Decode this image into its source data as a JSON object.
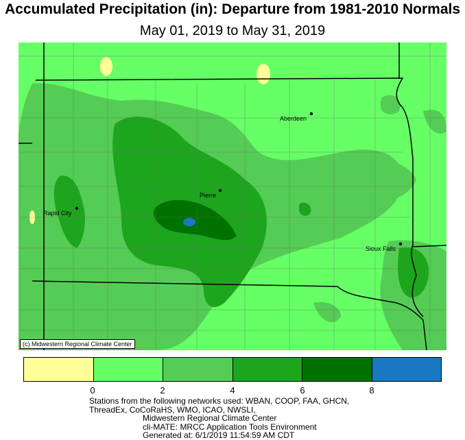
{
  "title": "Accumulated Precipitation (in): Departure from 1981-2010 Normals",
  "subtitle": "May 01, 2019 to May 31, 2019",
  "map": {
    "copyright": "(c) Midwestern Regional Climate Center",
    "cities": [
      {
        "name": "Aberdeen"
      },
      {
        "name": "Pierre"
      },
      {
        "name": "Rapid City"
      },
      {
        "name": "Sioux Falls"
      }
    ],
    "colors": {
      "light_green": "#66ff66",
      "medium_green": "#55cc55",
      "green": "#1ea51e",
      "dark_green": "#007200",
      "blue": "#1a78c2",
      "yellow": "#ffff99"
    }
  },
  "legend": {
    "colors": [
      "#ffff99",
      "#66ff66",
      "#55cc55",
      "#1ea51e",
      "#007200",
      "#1a78c2"
    ],
    "tick_labels": [
      "0",
      "2",
      "4",
      "6",
      "8"
    ]
  },
  "footer": {
    "line1": "Stations from the following networks used: WBAN, COOP, FAA, GHCN,",
    "line2": "ThreadEx, CoCoRaHS, WMO, ICAO, NWSLI,",
    "line3": "Midwestern Regional Climate Center",
    "line4": "cli-MATE: MRCC Application Tools Environment",
    "line5": "Generated at: 6/1/2019 11:54:59 AM CDT"
  }
}
